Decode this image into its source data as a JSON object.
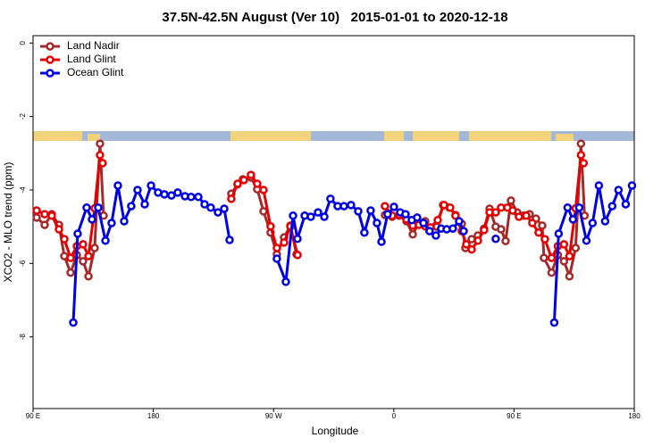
{
  "chart_data": {
    "type": "line",
    "title": "37.5N-42.5N August (Ver 10)   2015-01-01 to 2020-12-18",
    "x_label": "Longitude",
    "y_label": "XCO2 - MLO trend (ppm)",
    "xlim": [
      90,
      540
    ],
    "xticks": [
      {
        "value": 90,
        "label": "90 E"
      },
      180,
      {
        "value": 270,
        "label": "90 W"
      },
      {
        "value": 360,
        "label": "0"
      },
      {
        "value": 450,
        "label": "90 E"
      },
      {
        "value": 540,
        "label": "180"
      }
    ],
    "ylim": [
      -9.95,
      0.2
    ],
    "yticks": [
      0,
      -2,
      -4,
      -6,
      -8
    ],
    "legend": "top-left",
    "series": [
      {
        "name": "Land Nadir",
        "color": "#a52a2a",
        "x": [
          92.7,
          98.7,
          104.0,
          109.4,
          113.4,
          118.1,
          122.8,
          127.4,
          131.5,
          136.1,
          140.1,
          142.8,
          null,
          238.4,
          243.1,
          247.1,
          253.1,
          257.8,
          262.5,
          267.8,
          272.5,
          277.9,
          282.6,
          287.2,
          null,
          353.4,
          358.8,
          364.1,
          369.5,
          374.2,
          378.8,
          383.5,
          387.5,
          392.2,
          396.9,
          401.6,
          406.2,
          410.9,
          413.6,
          418.3,
          422.9,
          427.6,
          431.7,
          436.3,
          440.3,
          443.7,
          447.7,
          452.4,
          457.1,
          461.7,
          466.4,
          471.1,
          472.4,
          478.1,
          482.8,
          487.4,
          491.5,
          496.1,
          500.1,
          502.8
        ],
        "values": [
          -4.75,
          -4.95,
          -4.66,
          -4.95,
          -5.8,
          -6.25,
          -5.77,
          -5.94,
          -6.35,
          -5.58,
          -2.74,
          -4.7,
          null,
          -4.1,
          -3.85,
          -3.71,
          -3.66,
          -3.98,
          -4.58,
          -5.16,
          -5.75,
          -5.29,
          -4.97,
          -5.75,
          null,
          -4.68,
          -4.73,
          -4.7,
          -4.85,
          -5.21,
          -4.9,
          -4.85,
          -5.02,
          -5.0,
          -4.41,
          -4.48,
          -4.68,
          -4.92,
          -5.58,
          -5.34,
          -5.24,
          -5.05,
          -4.51,
          -5.0,
          -5.07,
          -5.39,
          -4.29,
          -4.61,
          -4.7,
          -4.66,
          -4.78,
          -4.97,
          -5.85,
          -6.25,
          -5.77,
          -5.94,
          -6.35,
          -5.58,
          -2.74,
          -4.7
        ]
      },
      {
        "name": "Land Glint",
        "color": "#e60000",
        "x": [
          92.7,
          98.7,
          104.0,
          109.4,
          113.4,
          118.1,
          122.8,
          127.4,
          131.5,
          136.1,
          140.1,
          142.1,
          null,
          238.4,
          243.1,
          247.8,
          253.1,
          257.8,
          262.5,
          267.8,
          272.5,
          277.9,
          282.6,
          288.0,
          null,
          353.4,
          358.8,
          364.1,
          369.5,
          374.2,
          378.8,
          383.5,
          387.5,
          392.9,
          397.6,
          402.2,
          406.2,
          410.9,
          414.3,
          418.3,
          423.0,
          427.6,
          431.7,
          436.3,
          440.3,
          445.0,
          449.0,
          453.7,
          459.1,
          463.7,
          468.4,
          473.1,
          478.1,
          482.8,
          487.4,
          491.5,
          496.1,
          500.1,
          502.1
        ],
        "values": [
          -4.56,
          -4.66,
          -4.7,
          -5.07,
          -5.34,
          -5.85,
          -5.53,
          -5.48,
          -5.8,
          -4.5,
          -3.05,
          -3.27,
          null,
          -4.24,
          -3.83,
          -3.73,
          -3.59,
          -3.83,
          -4.0,
          -4.99,
          -5.58,
          -5.43,
          -4.99,
          -5.77,
          null,
          -4.44,
          -4.7,
          -4.68,
          -4.8,
          -4.97,
          -4.95,
          -4.99,
          -5.02,
          -4.82,
          -4.41,
          -4.48,
          -4.7,
          -5.12,
          -5.48,
          -5.62,
          -5.38,
          -5.09,
          -4.61,
          -4.61,
          -4.48,
          -4.48,
          -4.56,
          -4.73,
          -4.7,
          -4.9,
          -5.16,
          -5.34,
          -5.85,
          -5.53,
          -5.48,
          -5.8,
          -4.5,
          -3.05,
          -3.27
        ]
      },
      {
        "name": "Ocean Glint",
        "color": "#0000e6",
        "x": [
          120.1,
          123.4,
          130.1,
          134.1,
          138.8,
          144.2,
          148.8,
          153.5,
          158.2,
          163.5,
          168.2,
          173.6,
          178.3,
          183.6,
          188.3,
          193.6,
          198.3,
          203.7,
          208.3,
          213.7,
          218.4,
          223.0,
          228.4,
          233.1,
          237.1,
          null,
          272.5,
          279.2,
          284.6,
          287.9,
          293.3,
          297.9,
          303.3,
          308.0,
          312.6,
          318.0,
          322.7,
          328.0,
          333.4,
          338.0,
          342.7,
          347.4,
          350.8,
          355.4,
          360.1,
          364.8,
          368.8,
          373.5,
          377.5,
          382.2,
          386.8,
          391.5,
          395.5,
          399.6,
          404.2,
          408.9,
          412.3,
          null,
          436.3,
          null,
          480.1,
          483.4,
          490.1,
          494.1,
          498.8,
          504.2,
          508.8,
          513.5,
          518.2,
          523.5,
          528.2,
          533.6,
          538.3
        ],
        "values": [
          -7.61,
          -5.19,
          -4.48,
          -4.8,
          -4.48,
          -5.38,
          -4.9,
          -3.88,
          -4.85,
          -4.44,
          -4.0,
          -4.39,
          -3.88,
          -4.07,
          -4.12,
          -4.15,
          -4.07,
          -4.17,
          -4.19,
          -4.19,
          -4.39,
          -4.48,
          -4.61,
          -4.51,
          -5.36,
          null,
          -5.87,
          -6.5,
          -4.7,
          -5.33,
          -4.7,
          -4.73,
          -4.61,
          -4.73,
          -4.24,
          -4.44,
          -4.44,
          -4.41,
          -4.58,
          -5.16,
          -4.56,
          -4.9,
          -5.41,
          -4.66,
          -4.46,
          -4.61,
          -4.66,
          -4.82,
          -4.75,
          -4.9,
          -5.12,
          -5.24,
          -5.05,
          -5.07,
          -5.05,
          -4.85,
          -5.12,
          null,
          -5.33,
          null,
          -7.61,
          -5.19,
          -4.48,
          -4.8,
          -4.48,
          -5.38,
          -4.9,
          -3.88,
          -4.85,
          -4.44,
          -4.0,
          -4.39,
          -3.88
        ]
      }
    ]
  }
}
